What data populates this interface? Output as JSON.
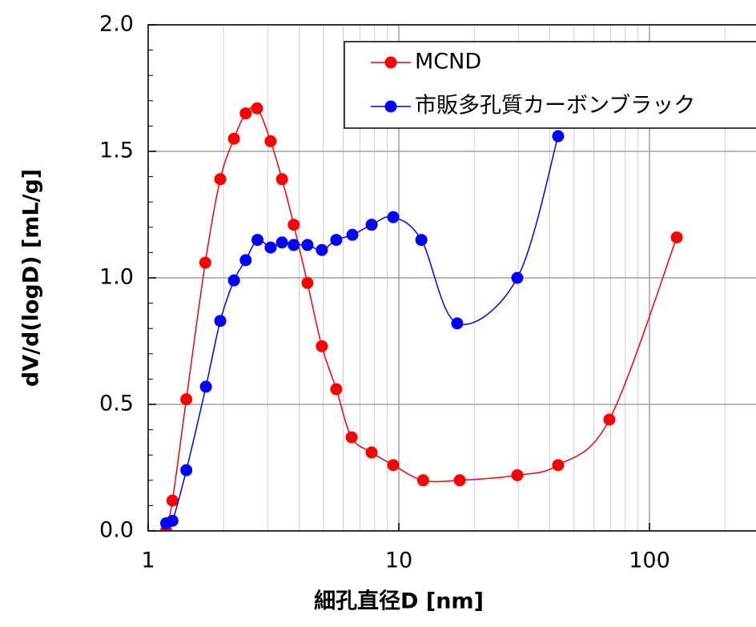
{
  "chart_data": {
    "type": "line",
    "x_label": "細孔直径D [nm]",
    "y_label": "dV/d(logD) [mL/g]",
    "xscale": "log",
    "xlim": [
      1,
      266
    ],
    "xticks": [
      1,
      10,
      100
    ],
    "ylim": [
      0,
      2.0
    ],
    "yticks": [
      {
        "value": 0,
        "label": "0.0"
      },
      {
        "value": 0.5,
        "label": "0.5"
      },
      {
        "value": 1.0,
        "label": "1.0"
      },
      {
        "value": 1.5,
        "label": "1.5"
      },
      {
        "value": 2.0,
        "label": "2.0"
      }
    ],
    "grid": true,
    "legend": "upper right",
    "series": [
      {
        "name": "MCND",
        "color": "#ff0000",
        "x": [
          1.18,
          1.25,
          1.42,
          1.69,
          1.94,
          2.2,
          2.45,
          2.72,
          3.08,
          3.42,
          3.81,
          4.32,
          4.93,
          5.63,
          6.48,
          7.79,
          9.5,
          12.5,
          17.5,
          29.7,
          43.2,
          69.2,
          128.5
        ],
        "values": [
          0.0,
          0.12,
          0.52,
          1.06,
          1.39,
          1.55,
          1.65,
          1.67,
          1.54,
          1.39,
          1.21,
          0.98,
          0.73,
          0.56,
          0.37,
          0.31,
          0.26,
          0.2,
          0.2,
          0.22,
          0.26,
          0.44,
          1.16
        ]
      },
      {
        "name": "市販多孔質カーボンブラック",
        "color": "#0000ff",
        "x": [
          1.18,
          1.25,
          1.42,
          1.7,
          1.94,
          2.2,
          2.45,
          2.73,
          3.08,
          3.42,
          3.81,
          4.32,
          4.93,
          5.63,
          6.53,
          7.79,
          9.5,
          12.3,
          17.1,
          29.7,
          43.2
        ],
        "values": [
          0.03,
          0.04,
          0.24,
          0.57,
          0.83,
          0.99,
          1.07,
          1.15,
          1.12,
          1.14,
          1.13,
          1.13,
          1.11,
          1.15,
          1.17,
          1.21,
          1.24,
          1.15,
          0.82,
          1.0,
          1.56
        ]
      }
    ]
  }
}
